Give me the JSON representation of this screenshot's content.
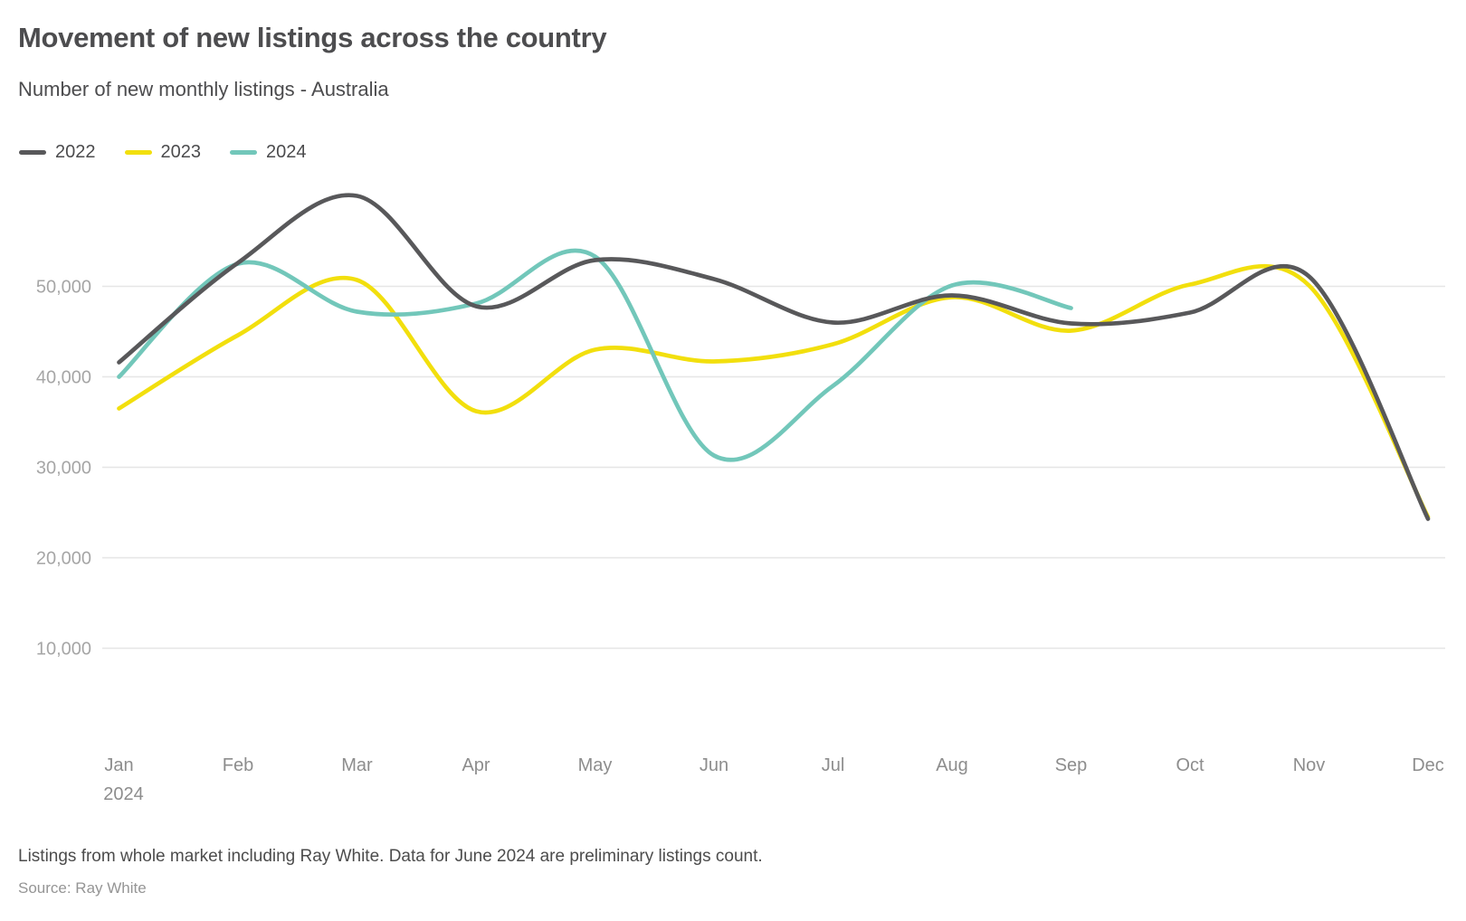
{
  "header": {
    "title": "Movement of new listings across the country",
    "subtitle": "Number of new monthly listings - Australia"
  },
  "legend": [
    {
      "label": "2022",
      "color": "#58585a"
    },
    {
      "label": "2023",
      "color": "#f2df0d"
    },
    {
      "label": "2024",
      "color": "#72c7ba"
    }
  ],
  "chart_data": {
    "type": "line",
    "title": "Movement of new listings across the country",
    "subtitle": "Number of new monthly listings - Australia",
    "x": [
      "Jan",
      "Feb",
      "Mar",
      "Apr",
      "May",
      "Jun",
      "Jul",
      "Aug",
      "Sep",
      "Oct",
      "Nov",
      "Dec"
    ],
    "x_first_tick_second_line": "2024",
    "series": [
      {
        "name": "2022",
        "color": "#58585a",
        "values": [
          41600,
          52600,
          60000,
          47800,
          52900,
          50800,
          46000,
          49000,
          45900,
          47100,
          51100,
          24300
        ]
      },
      {
        "name": "2023",
        "color": "#f2df0d",
        "values": [
          36500,
          44600,
          50700,
          36200,
          43000,
          41700,
          43600,
          48800,
          45100,
          50200,
          50100,
          24500
        ]
      },
      {
        "name": "2024",
        "color": "#72c7ba",
        "values": [
          40000,
          52500,
          47200,
          48100,
          53300,
          31300,
          39000,
          50100,
          47600
        ]
      }
    ],
    "yticks": [
      {
        "value": 50000,
        "label": "50,000"
      },
      {
        "value": 40000,
        "label": "40,000"
      },
      {
        "value": 30000,
        "label": "30,000"
      },
      {
        "value": 20000,
        "label": "20,000"
      },
      {
        "value": 10000,
        "label": "10,000"
      }
    ],
    "ylim": [
      10000,
      60000
    ],
    "grid": "horizontal",
    "legend_position": "top-left",
    "note": "2024 series ends at September"
  },
  "footnotes": {
    "note": "Listings from whole market including Ray White. Data for June 2024 are preliminary listings count.",
    "source": "Source: Ray White"
  },
  "colors": {
    "grid": "#e6e6e6",
    "y_tick_text": "#a6a6a6",
    "x_tick_text": "#8d8d8d",
    "title_text": "#4d4d4f"
  }
}
